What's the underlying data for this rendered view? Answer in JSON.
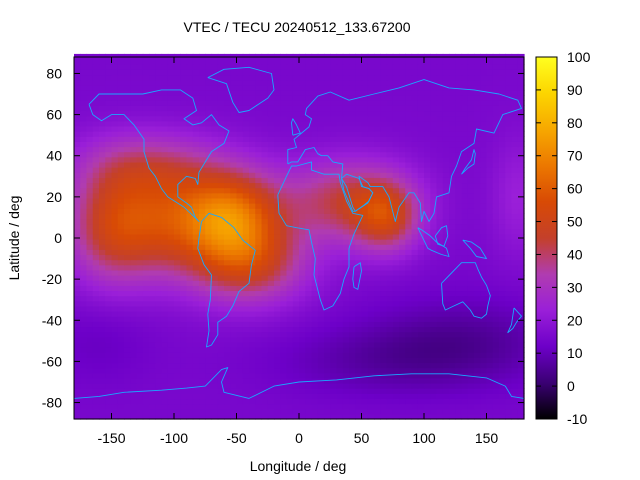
{
  "chart_data": {
    "type": "heatmap",
    "title": "VTEC / TECU 20240512_133.67200",
    "xlabel": "Longitude / deg",
    "ylabel": "Latitude / deg",
    "xlim": [
      -180,
      180
    ],
    "ylim": [
      -88,
      88
    ],
    "x_ticks": [
      -150,
      -100,
      -50,
      0,
      50,
      100,
      150
    ],
    "y_ticks": [
      -80,
      -60,
      -40,
      -20,
      0,
      20,
      40,
      60,
      80
    ],
    "colorbar": {
      "range": [
        -10,
        100
      ],
      "ticks": [
        100,
        90,
        80,
        70,
        60,
        50,
        40,
        30,
        20,
        10,
        0,
        -10
      ],
      "palette": [
        "#000000",
        "#3a0073",
        "#6d00c8",
        "#9a1fd8",
        "#b03cb0",
        "#c4402a",
        "#d84a05",
        "#ec7800",
        "#f7a800",
        "#fcd500",
        "#ffff20"
      ]
    },
    "cell_deg": [
      5,
      2.5
    ],
    "field_description_values": {
      "background_level_tecu": 15,
      "main_crest_peak_tecu": 92,
      "main_crest_center_lon_deg": -52,
      "secondary_peak_tecu": 68,
      "secondary_peak_center_lon_deg": 70,
      "polar_floor_tecu": 8
    }
  }
}
